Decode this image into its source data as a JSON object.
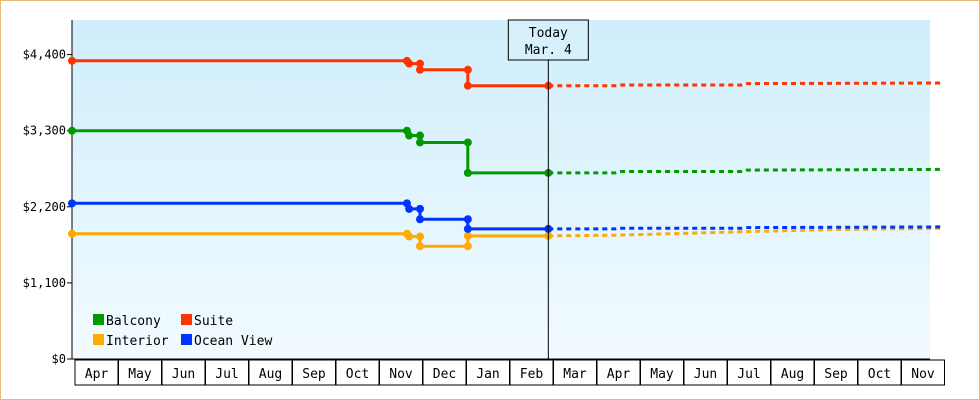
{
  "chart_data": {
    "type": "line",
    "xlabel": "",
    "ylabel": "",
    "ylim": [
      0,
      4900
    ],
    "y_ticks": [
      {
        "value": 0,
        "label": "$0"
      },
      {
        "value": 1100,
        "label": "$1,100"
      },
      {
        "value": 2200,
        "label": "$2,200"
      },
      {
        "value": 3300,
        "label": "$3,300"
      },
      {
        "value": 4400,
        "label": "$4,400"
      }
    ],
    "months": [
      "Apr",
      "May",
      "Jun",
      "Jul",
      "Aug",
      "Sep",
      "Oct",
      "Nov",
      "Dec",
      "Jan",
      "Feb",
      "Mar",
      "Apr",
      "May",
      "Jun",
      "Jul",
      "Aug",
      "Sep",
      "Oct",
      "Nov"
    ],
    "today": {
      "line1": "Today",
      "line2": "Mar. 4",
      "x": 10.95
    },
    "background": {
      "top": "#cfeefb",
      "bottom": "#f2fbff"
    },
    "legend_position": "bottom-left",
    "series": [
      {
        "name": "Balcony",
        "color": "#009900",
        "history": [
          [
            0,
            3300
          ],
          [
            7.7,
            3300
          ],
          [
            7.75,
            3230
          ],
          [
            8.0,
            3230
          ],
          [
            8.0,
            3130
          ],
          [
            9.1,
            3130
          ],
          [
            9.1,
            2690
          ],
          [
            10.95,
            2690
          ]
        ],
        "markers": [
          [
            0,
            3300
          ],
          [
            7.7,
            3300
          ],
          [
            7.75,
            3230
          ],
          [
            8.0,
            3230
          ],
          [
            8.0,
            3130
          ],
          [
            9.1,
            3130
          ],
          [
            9.1,
            2690
          ],
          [
            10.95,
            2690
          ]
        ],
        "forecast": [
          [
            10.95,
            2690
          ],
          [
            12.5,
            2690
          ],
          [
            12.6,
            2710
          ],
          [
            15.4,
            2710
          ],
          [
            15.5,
            2730
          ],
          [
            20,
            2740
          ]
        ]
      },
      {
        "name": "Suite",
        "color": "#ff3300",
        "history": [
          [
            0,
            4310
          ],
          [
            7.7,
            4310
          ],
          [
            7.75,
            4270
          ],
          [
            8.0,
            4270
          ],
          [
            8.0,
            4180
          ],
          [
            9.1,
            4180
          ],
          [
            9.1,
            3950
          ],
          [
            10.95,
            3950
          ]
        ],
        "markers": [
          [
            0,
            4310
          ],
          [
            7.7,
            4310
          ],
          [
            7.75,
            4270
          ],
          [
            8.0,
            4270
          ],
          [
            8.0,
            4180
          ],
          [
            9.1,
            4180
          ],
          [
            9.1,
            3950
          ],
          [
            10.95,
            3950
          ]
        ],
        "forecast": [
          [
            10.95,
            3950
          ],
          [
            12.5,
            3950
          ],
          [
            12.6,
            3960
          ],
          [
            15.4,
            3960
          ],
          [
            15.5,
            3980
          ],
          [
            20,
            3990
          ]
        ]
      },
      {
        "name": "Interior",
        "color": "#ffaa00",
        "history": [
          [
            0,
            1810
          ],
          [
            7.7,
            1810
          ],
          [
            7.75,
            1770
          ],
          [
            8.0,
            1770
          ],
          [
            8.0,
            1630
          ],
          [
            9.1,
            1630
          ],
          [
            9.1,
            1780
          ],
          [
            10.95,
            1780
          ]
        ],
        "markers": [
          [
            0,
            1810
          ],
          [
            7.7,
            1810
          ],
          [
            7.75,
            1770
          ],
          [
            8.0,
            1770
          ],
          [
            8.0,
            1630
          ],
          [
            9.1,
            1630
          ],
          [
            9.1,
            1780
          ],
          [
            10.95,
            1780
          ]
        ],
        "forecast": [
          [
            10.95,
            1780
          ],
          [
            12.5,
            1790
          ],
          [
            15.4,
            1840
          ],
          [
            17.5,
            1870
          ],
          [
            20,
            1890
          ]
        ]
      },
      {
        "name": "Ocean View",
        "color": "#0033ff",
        "history": [
          [
            0,
            2250
          ],
          [
            7.7,
            2250
          ],
          [
            7.75,
            2170
          ],
          [
            8.0,
            2170
          ],
          [
            8.0,
            2020
          ],
          [
            9.1,
            2020
          ],
          [
            9.1,
            1880
          ],
          [
            10.95,
            1880
          ]
        ],
        "markers": [
          [
            0,
            2250
          ],
          [
            7.7,
            2250
          ],
          [
            7.75,
            2170
          ],
          [
            8.0,
            2170
          ],
          [
            8.0,
            2020
          ],
          [
            9.1,
            2020
          ],
          [
            9.1,
            1880
          ],
          [
            10.95,
            1880
          ]
        ],
        "forecast": [
          [
            10.95,
            1880
          ],
          [
            12.5,
            1880
          ],
          [
            12.6,
            1890
          ],
          [
            15.4,
            1890
          ],
          [
            15.5,
            1900
          ],
          [
            20,
            1910
          ]
        ]
      }
    ],
    "legend": [
      {
        "name": "Balcony",
        "color": "#009900"
      },
      {
        "name": "Suite",
        "color": "#ff3300"
      },
      {
        "name": "Interior",
        "color": "#ffaa00"
      },
      {
        "name": "Ocean View",
        "color": "#0033ff"
      }
    ]
  }
}
